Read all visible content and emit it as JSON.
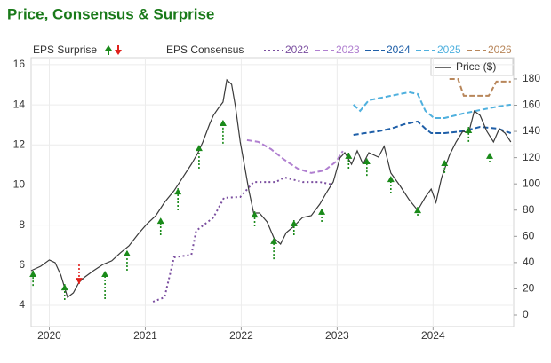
{
  "chart_data": {
    "type": "line",
    "title": "Price, Consensus & Surprise",
    "xlim": [
      2019.81,
      2024.84
    ],
    "xticks": [
      2020,
      2021,
      2022,
      2023,
      2024
    ],
    "ylim": [
      2.94,
      16.35
    ],
    "yticks": [
      4,
      6,
      8,
      10,
      12,
      14,
      16
    ],
    "y2lim": [
      -8.8,
      196.2
    ],
    "y2ticks": [
      0,
      20,
      40,
      60,
      80,
      100,
      120,
      140,
      160,
      180
    ],
    "grid": true,
    "consensus_label": "EPS Consensus",
    "surprise": {
      "name": "EPS Surprise",
      "up_color": "#1a8a1a",
      "down_color": "#e0201b",
      "x": [
        2019.83,
        2020.16,
        2020.31,
        2020.58,
        2020.81,
        2021.16,
        2021.34,
        2021.56,
        2021.81,
        2022.14,
        2022.34,
        2022.55,
        2022.84,
        2023.12,
        2023.31,
        2023.56,
        2023.84,
        2024.12,
        2024.37,
        2024.59
      ],
      "estimates": [
        4.97,
        4.27,
        6.04,
        4.31,
        5.73,
        7.5,
        8.74,
        10.82,
        12.06,
        7.94,
        6.3,
        7.5,
        8.16,
        10.82,
        10.46,
        9.58,
        8.47,
        10.6,
        12.15,
        11.13
      ],
      "values": [
        5.73,
        5.06,
        5.06,
        5.73,
        6.75,
        8.38,
        9.84,
        12.01,
        13.25,
        8.69,
        7.37,
        8.25,
        8.83,
        11.62,
        11.35,
        10.46,
        8.91,
        11.26,
        12.9,
        11.62
      ]
    },
    "series": [
      {
        "name": "2022",
        "color": "#7b4fa0",
        "style": "dotted",
        "x": [
          2021.08,
          2021.2,
          2021.3,
          2021.48,
          2021.53,
          2021.71,
          2021.82,
          2021.99,
          2022.13,
          2022.36,
          2022.45,
          2022.64,
          2022.82,
          2022.96
        ],
        "values": [
          4.18,
          4.4,
          6.39,
          6.52,
          7.72,
          8.38,
          9.36,
          9.4,
          10.15,
          10.15,
          10.38,
          10.15,
          10.15,
          10.02
        ]
      },
      {
        "name": "2023",
        "color": "#b07fd0",
        "style": "dashed",
        "x": [
          2022.06,
          2022.18,
          2022.31,
          2022.45,
          2022.59,
          2022.73,
          2022.87,
          2022.99,
          2023.06
        ],
        "values": [
          12.24,
          12.15,
          11.79,
          11.26,
          10.82,
          10.6,
          10.73,
          11.17,
          11.7
        ]
      },
      {
        "name": "2024",
        "color": "#1f5fa8",
        "style": "dashed",
        "x": [
          2023.17,
          2023.29,
          2023.43,
          2023.56,
          2023.7,
          2023.84,
          2023.92,
          2023.98,
          2024.12,
          2024.31,
          2024.49,
          2024.68,
          2024.81
        ],
        "values": [
          12.5,
          12.59,
          12.68,
          12.81,
          13.03,
          13.17,
          12.81,
          12.59,
          12.59,
          12.68,
          12.9,
          12.81,
          12.59
        ]
      },
      {
        "name": "2025",
        "color": "#4fb0de",
        "style": "dashed",
        "x": [
          2023.17,
          2023.24,
          2023.33,
          2023.56,
          2023.75,
          2023.84,
          2023.92,
          2024.01,
          2024.12,
          2024.31,
          2024.49,
          2024.68,
          2024.81
        ],
        "values": [
          14.01,
          13.7,
          14.23,
          14.45,
          14.63,
          14.54,
          13.7,
          13.34,
          13.34,
          13.56,
          13.74,
          13.92,
          14.01
        ]
      },
      {
        "name": "2026",
        "color": "#b8865a",
        "style": "dashed",
        "x": [
          2024.17,
          2024.26,
          2024.32,
          2024.58,
          2024.66,
          2024.81
        ],
        "values": [
          15.29,
          15.29,
          14.45,
          14.45,
          15.16,
          15.16
        ]
      },
      {
        "name": "Price ($)",
        "color": "#3a3a3a",
        "style": "solid",
        "axis": "y2",
        "x": [
          2019.81,
          2019.91,
          2020.0,
          2020.06,
          2020.12,
          2020.19,
          2020.25,
          2020.31,
          2020.37,
          2020.46,
          2020.56,
          2020.65,
          2020.74,
          2020.83,
          2020.93,
          2021.02,
          2021.11,
          2021.2,
          2021.3,
          2021.39,
          2021.48,
          2021.55,
          2021.6,
          2021.67,
          2021.71,
          2021.76,
          2021.81,
          2021.85,
          2021.9,
          2021.94,
          2021.99,
          2022.04,
          2022.08,
          2022.13,
          2022.19,
          2022.27,
          2022.34,
          2022.41,
          2022.47,
          2022.55,
          2022.64,
          2022.73,
          2022.82,
          2022.9,
          2022.96,
          2023.03,
          2023.08,
          2023.15,
          2023.21,
          2023.27,
          2023.33,
          2023.43,
          2023.49,
          2023.56,
          2023.66,
          2023.75,
          2023.84,
          2023.92,
          2023.98,
          2024.03,
          2024.09,
          2024.17,
          2024.24,
          2024.31,
          2024.37,
          2024.43,
          2024.49,
          2024.56,
          2024.63,
          2024.69,
          2024.75,
          2024.81
        ],
        "values": [
          33.8,
          37.2,
          42.0,
          40.0,
          30.4,
          13.5,
          16.9,
          25.0,
          29.0,
          33.8,
          38.6,
          41.3,
          47.4,
          52.8,
          62.2,
          69.7,
          75.8,
          85.9,
          94.8,
          104.9,
          115.0,
          123.8,
          131.9,
          145.5,
          152.2,
          157.6,
          162.4,
          179.3,
          175.9,
          159.0,
          131.9,
          111.6,
          94.7,
          77.8,
          77.8,
          71.0,
          58.9,
          54.1,
          62.9,
          67.7,
          74.4,
          75.8,
          84.6,
          94.7,
          101.5,
          119.8,
          123.8,
          115.0,
          125.2,
          115.0,
          123.8,
          120.4,
          128.6,
          108.3,
          98.1,
          88.0,
          79.8,
          90.0,
          96.1,
          85.9,
          104.9,
          121.8,
          131.9,
          140.1,
          138.7,
          155.6,
          152.2,
          140.1,
          131.9,
          142.1,
          138.7,
          131.9
        ]
      }
    ]
  }
}
